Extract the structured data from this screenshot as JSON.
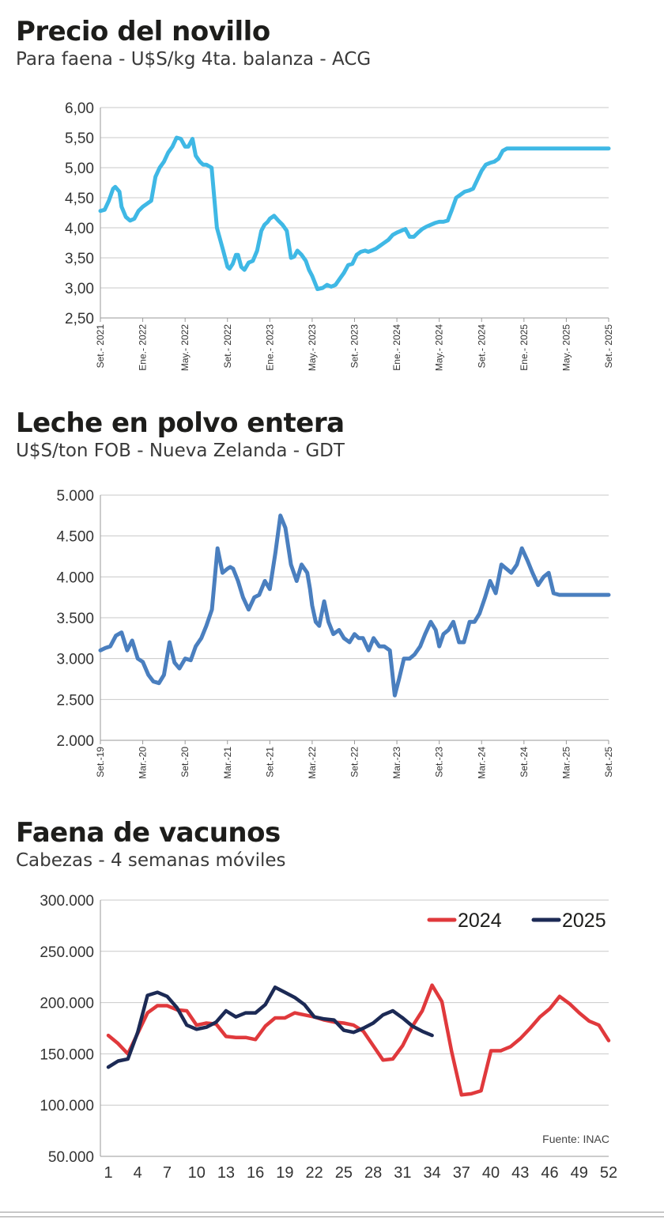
{
  "charts": {
    "novillo": {
      "title": "Precio del novillo",
      "subtitle": "Para faena - U$S/kg 4ta. balanza - ACG"
    },
    "leche": {
      "title": "Leche en polvo entera",
      "subtitle": "U$S/ton FOB - Nueva Zelanda - GDT"
    },
    "faena": {
      "title": "Faena de vacunos",
      "subtitle": "Cabezas - 4 semanas móviles",
      "source": "Fuente: INAC"
    }
  },
  "colors": {
    "novillo": "#3fb8e5",
    "leche": "#4a7fbf",
    "y2024": "#e0393c",
    "y2025": "#1c2a55",
    "grid": "#c9c9c9"
  },
  "chart_data": [
    {
      "type": "line",
      "title": "Precio del novillo",
      "subtitle": "Para faena - U$S/kg 4ta. balanza - ACG",
      "ylim": [
        2.5,
        6.0
      ],
      "yticks": [
        "2,50",
        "3,00",
        "3,50",
        "4,00",
        "4,50",
        "5,00",
        "5,50",
        "6,00"
      ],
      "xlim": [
        0,
        48
      ],
      "xticks": [
        {
          "i": 0,
          "label": "Set.- 2021"
        },
        {
          "i": 4,
          "label": "Ene.- 2022"
        },
        {
          "i": 8,
          "label": "May.- 2022"
        },
        {
          "i": 12,
          "label": "Set.- 2022"
        },
        {
          "i": 16,
          "label": "Ene.- 2023"
        },
        {
          "i": 20,
          "label": "May.- 2023"
        },
        {
          "i": 24,
          "label": "Set.- 2023"
        },
        {
          "i": 28,
          "label": "Ene.- 2024"
        },
        {
          "i": 32,
          "label": "May.- 2024"
        },
        {
          "i": 36,
          "label": "Set.- 2024"
        },
        {
          "i": 40,
          "label": "Ene.- 2025"
        },
        {
          "i": 44,
          "label": "May.- 2025"
        },
        {
          "i": 48,
          "label": "Set.- 2025"
        }
      ],
      "series": [
        {
          "name": "Novillo",
          "x": [
            0,
            0.4,
            0.8,
            1.2,
            1.4,
            1.8,
            2.0,
            2.4,
            2.8,
            3.2,
            3.6,
            4.0,
            4.4,
            4.8,
            5.2,
            5.6,
            6.0,
            6.4,
            6.8,
            7.2,
            7.6,
            8.0,
            8.3,
            8.7,
            9.0,
            9.4,
            9.7,
            10.0,
            10.5,
            11.0,
            11.6,
            12.0,
            12.2,
            12.5,
            12.8,
            13.0,
            13.3,
            13.6,
            14.0,
            14.4,
            14.8,
            15.2,
            15.5,
            15.8,
            16.0,
            16.4,
            16.8,
            17.2,
            17.6,
            18.0,
            18.3,
            18.6,
            19.0,
            19.4,
            19.7,
            20.0,
            20.5,
            21.0,
            21.4,
            21.8,
            22.2,
            22.6,
            23.0,
            23.4,
            23.8,
            24.2,
            24.6,
            25.0,
            25.3,
            25.6,
            26.0,
            26.4,
            26.8,
            27.2,
            27.6,
            28.0,
            28.4,
            28.8,
            29.2,
            29.6,
            30.0,
            30.4,
            30.8,
            31.2,
            31.6,
            32.0,
            32.4,
            32.8,
            33.2,
            33.6,
            34.0,
            34.4,
            34.8,
            35.2,
            35.6,
            36.0,
            36.4,
            36.8,
            37.2,
            37.6,
            38.0,
            38.4,
            38.8,
            39.2,
            39.6,
            40.0,
            40.4,
            40.8,
            41.2,
            41.6,
            42.0,
            42.4,
            42.8,
            43.2,
            43.6,
            44.0,
            44.4,
            44.8,
            45.2,
            45.6,
            46.0,
            46.4,
            46.8,
            47.2,
            47.6,
            48.0
          ],
          "values": [
            4.28,
            4.3,
            4.45,
            4.65,
            4.68,
            4.6,
            4.35,
            4.18,
            4.12,
            4.15,
            4.28,
            4.35,
            4.4,
            4.45,
            4.85,
            5.0,
            5.1,
            5.25,
            5.35,
            5.5,
            5.48,
            5.35,
            5.35,
            5.48,
            5.2,
            5.1,
            5.05,
            5.05,
            5.0,
            4.0,
            3.62,
            3.35,
            3.32,
            3.4,
            3.55,
            3.55,
            3.35,
            3.3,
            3.42,
            3.45,
            3.62,
            3.95,
            4.05,
            4.1,
            4.15,
            4.2,
            4.12,
            4.05,
            3.95,
            3.5,
            3.52,
            3.62,
            3.55,
            3.45,
            3.3,
            3.2,
            2.98,
            3.0,
            3.05,
            3.02,
            3.05,
            3.15,
            3.25,
            3.38,
            3.4,
            3.55,
            3.6,
            3.62,
            3.6,
            3.62,
            3.65,
            3.7,
            3.75,
            3.8,
            3.88,
            3.92,
            3.95,
            3.98,
            3.85,
            3.85,
            3.92,
            3.98,
            4.02,
            4.05,
            4.08,
            4.1,
            4.1,
            4.12,
            4.3,
            4.5,
            4.55,
            4.6,
            4.62,
            4.65,
            4.8,
            4.95,
            5.05,
            5.08,
            5.1,
            5.15,
            5.28,
            5.32,
            5.32,
            5.32,
            5.32,
            5.32,
            5.32,
            5.32,
            5.32,
            5.32,
            5.32,
            5.32,
            5.32,
            5.32,
            5.32,
            5.32,
            5.32,
            5.32,
            5.32,
            5.32,
            5.32,
            5.32,
            5.32,
            5.32,
            5.32,
            5.32
          ]
        }
      ]
    },
    {
      "type": "line",
      "title": "Leche en polvo entera",
      "subtitle": "U$S/ton FOB - Nueva Zelanda - GDT",
      "ylim": [
        2000,
        5000
      ],
      "yticks": [
        "2.000",
        "2.500",
        "3.000",
        "3.500",
        "4.000",
        "4.500",
        "5.000"
      ],
      "xlim": [
        0,
        72
      ],
      "xticks": [
        {
          "i": 0,
          "label": "Set.-19"
        },
        {
          "i": 6,
          "label": "Mar.-20"
        },
        {
          "i": 12,
          "label": "Set.-20"
        },
        {
          "i": 18,
          "label": "Mar.-21"
        },
        {
          "i": 24,
          "label": "Set.-21"
        },
        {
          "i": 30,
          "label": "Mar.-22"
        },
        {
          "i": 36,
          "label": "Set.-22"
        },
        {
          "i": 42,
          "label": "Mar.-23"
        },
        {
          "i": 48,
          "label": "Set.-23"
        },
        {
          "i": 54,
          "label": "Mar.-24"
        },
        {
          "i": 60,
          "label": "Set.-24"
        },
        {
          "i": 66,
          "label": "Mar.-25"
        },
        {
          "i": 72,
          "label": "Set.-25"
        }
      ],
      "series": [
        {
          "name": "Leche en polvo entera",
          "x": [
            0,
            0.7,
            1.4,
            2.2,
            3.0,
            3.8,
            4.5,
            5.3,
            6.0,
            6.8,
            7.5,
            8.3,
            9.0,
            9.8,
            10.5,
            11.2,
            12.0,
            12.8,
            13.5,
            14.3,
            15.0,
            15.8,
            16.6,
            17.3,
            18.0,
            18.4,
            18.8,
            19.5,
            20.2,
            21.0,
            21.8,
            22.5,
            23.3,
            24.0,
            24.8,
            25.5,
            26.2,
            27.0,
            27.8,
            28.5,
            29.3,
            29.7,
            30.0,
            30.5,
            31.0,
            31.7,
            32.3,
            33.0,
            33.8,
            34.5,
            35.3,
            36.0,
            36.6,
            37.2,
            38.0,
            38.7,
            39.5,
            40.2,
            41.0,
            41.7,
            42.3,
            43.0,
            43.8,
            44.5,
            45.3,
            46.0,
            46.8,
            47.5,
            48.0,
            48.6,
            49.3,
            50.0,
            50.8,
            51.5,
            52.3,
            53.0,
            53.7,
            54.5,
            55.2,
            56.0,
            56.8,
            57.5,
            58.2,
            59.0,
            59.7,
            60.5,
            61.2,
            62.0,
            62.8,
            63.5,
            64.2,
            65.0,
            65.7,
            66.4,
            67.1,
            67.8,
            68.5,
            69.2,
            70.0,
            70.7,
            71.3,
            72.0
          ],
          "values": [
            3100,
            3130,
            3150,
            3280,
            3320,
            3100,
            3220,
            3000,
            2960,
            2800,
            2720,
            2700,
            2800,
            3200,
            2950,
            2880,
            3000,
            2980,
            3150,
            3250,
            3400,
            3600,
            4350,
            4050,
            4100,
            4120,
            4100,
            3950,
            3750,
            3600,
            3750,
            3780,
            3950,
            3850,
            4300,
            4750,
            4600,
            4150,
            3950,
            4150,
            4050,
            3850,
            3650,
            3450,
            3400,
            3700,
            3450,
            3300,
            3350,
            3250,
            3200,
            3300,
            3250,
            3250,
            3100,
            3250,
            3150,
            3150,
            3100,
            2550,
            2750,
            3000,
            3000,
            3050,
            3150,
            3300,
            3450,
            3350,
            3150,
            3300,
            3350,
            3450,
            3200,
            3200,
            3450,
            3450,
            3550,
            3750,
            3950,
            3800,
            4150,
            4100,
            4050,
            4150,
            4350,
            4200,
            4050,
            3900,
            4000,
            4050,
            3800,
            3780,
            3780,
            3780,
            3780,
            3780,
            3780,
            3780,
            3780,
            3780,
            3780,
            3780
          ]
        }
      ]
    },
    {
      "type": "line",
      "title": "Faena de vacunos",
      "subtitle": "Cabezas - 4 semanas móviles",
      "ylim": [
        50000,
        300000
      ],
      "yticks": [
        "50.000",
        "100.000",
        "150.000",
        "200.000",
        "250.000",
        "300.000"
      ],
      "xticks": [
        "1",
        "4",
        "7",
        "10",
        "13",
        "16",
        "19",
        "22",
        "25",
        "28",
        "31",
        "34",
        "37",
        "40",
        "43",
        "46",
        "49",
        "52"
      ],
      "legend": [
        "2024",
        "2025"
      ],
      "source": "Fuente: INAC",
      "series": [
        {
          "name": "2024",
          "x": [
            1,
            2,
            3,
            4,
            5,
            6,
            7,
            8,
            9,
            10,
            11,
            12,
            13,
            14,
            15,
            16,
            17,
            18,
            19,
            20,
            21,
            22,
            23,
            24,
            25,
            26,
            27,
            28,
            29,
            30,
            31,
            32,
            33,
            34,
            35,
            36,
            37,
            38,
            39,
            40,
            41,
            42,
            43,
            44,
            45,
            46,
            47,
            48,
            49,
            50,
            51,
            52
          ],
          "values": [
            168000,
            160000,
            150000,
            170000,
            190000,
            197000,
            197000,
            193000,
            192000,
            178000,
            180000,
            179000,
            167000,
            166000,
            166000,
            164000,
            177000,
            185000,
            185000,
            190000,
            188000,
            186000,
            183000,
            181000,
            180000,
            178000,
            172000,
            158000,
            144000,
            145000,
            158000,
            177000,
            192000,
            217000,
            201000,
            152000,
            110000,
            111000,
            114000,
            153000,
            153000,
            157000,
            165000,
            175000,
            186000,
            194000,
            206000,
            199000,
            190000,
            182000,
            178000,
            163000
          ]
        },
        {
          "name": "2025",
          "x": [
            1,
            2,
            3,
            4,
            5,
            6,
            7,
            8,
            9,
            10,
            11,
            12,
            13,
            14,
            15,
            16,
            17,
            18,
            19,
            20,
            21,
            22,
            23,
            24,
            25,
            26,
            27,
            28,
            29,
            30,
            31,
            32,
            33,
            34
          ],
          "values": [
            137000,
            143000,
            145000,
            171000,
            207000,
            210000,
            206000,
            195000,
            178000,
            174000,
            176000,
            181000,
            192000,
            186000,
            190000,
            190000,
            198000,
            215000,
            210000,
            205000,
            198000,
            186000,
            184000,
            183000,
            173000,
            171000,
            175000,
            180000,
            188000,
            192000,
            185000,
            177000,
            172000,
            168000
          ]
        }
      ]
    }
  ]
}
